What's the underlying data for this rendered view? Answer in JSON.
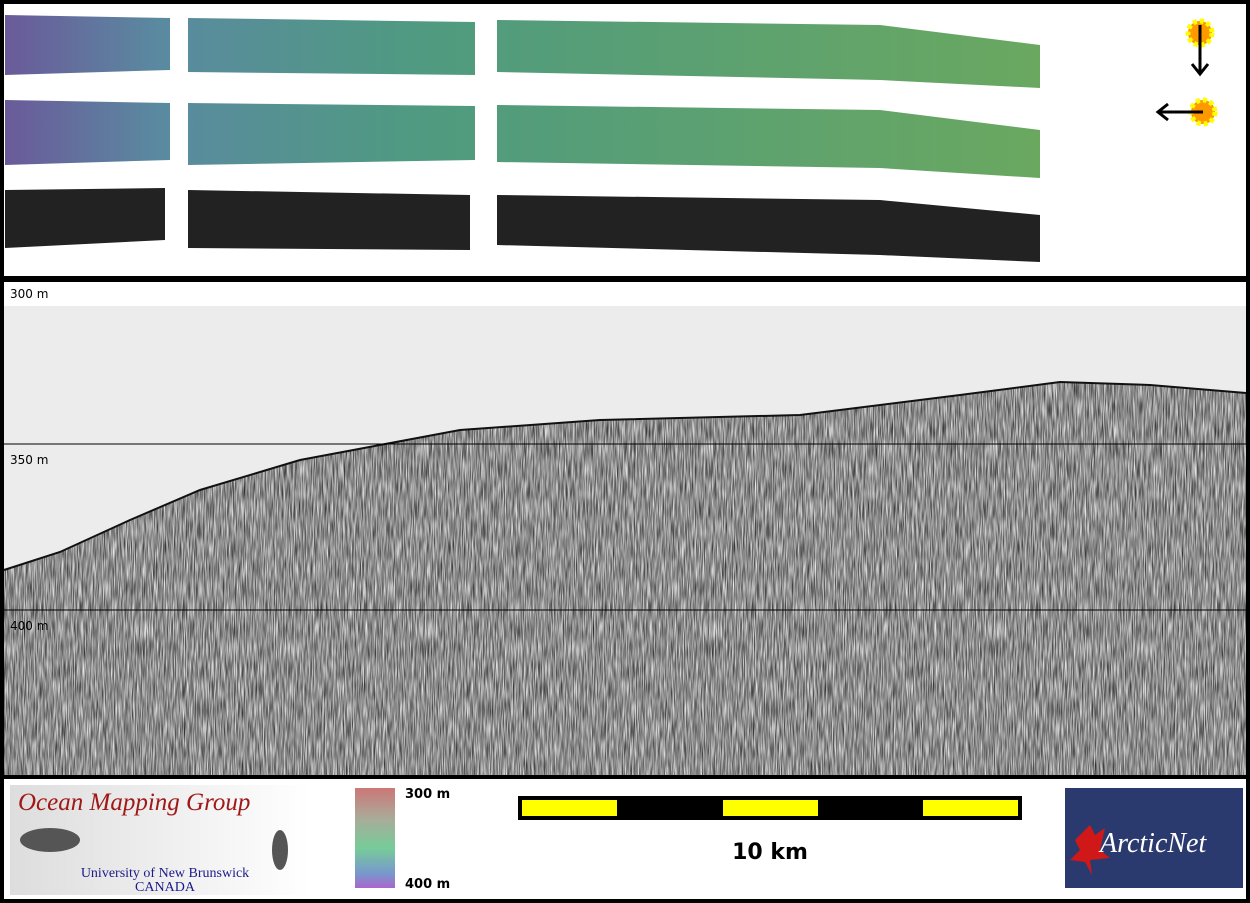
{
  "echogram": {
    "depth_labels": [
      "300 m",
      "350 m",
      "400 m"
    ]
  },
  "footer": {
    "logo": {
      "title": "Ocean Mapping Group",
      "line1": "University of New Brunswick",
      "line2": "CANADA"
    },
    "colorbar": {
      "top": "300 m",
      "bottom": "400 m"
    },
    "scale_bar": {
      "label": "10 km"
    },
    "partner_logo": {
      "text": "ArcticNet"
    }
  }
}
